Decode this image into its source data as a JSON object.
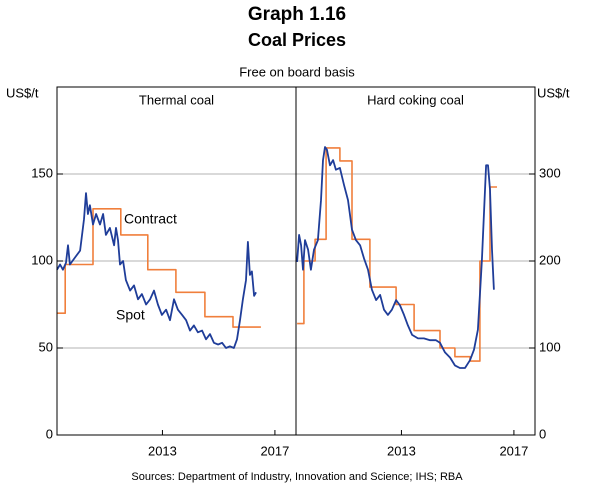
{
  "title": "Graph 1.16",
  "subtitle": "Coal Prices",
  "note": "Free on board basis",
  "source": "Sources:  Department of Industry, Innovation and Science; IHS; RBA",
  "chart_data": [
    {
      "type": "line",
      "title": "Thermal coal",
      "ylabel": "US$/t",
      "yaxis_side": "left",
      "xlim": [
        2009.75,
        2018.25
      ],
      "xticks": [
        {
          "value": 2013.5,
          "label": "2013"
        },
        {
          "value": 2017.5,
          "label": "2017"
        }
      ],
      "ylim": [
        0,
        200
      ],
      "yticks": [
        0,
        50,
        100,
        150
      ],
      "grid": true,
      "series": [
        {
          "name": "Contract",
          "color": "#f07f3c",
          "step": "post",
          "x": [
            2009.75,
            2010.04,
            2011.03,
            2012.02,
            2012.98,
            2013.98,
            2015.01,
            2016.01,
            2017.0
          ],
          "values": [
            70,
            98,
            130,
            115,
            95,
            82,
            68,
            62,
            62
          ]
        },
        {
          "name": "Spot",
          "color": "#1f3d99",
          "x": [
            2009.75,
            2009.86,
            2009.96,
            2010.07,
            2010.14,
            2010.21,
            2010.39,
            2010.57,
            2010.71,
            2010.78,
            2010.85,
            2010.92,
            2011.03,
            2011.14,
            2011.28,
            2011.39,
            2011.49,
            2011.63,
            2011.78,
            2011.85,
            2011.92,
            2011.99,
            2012.1,
            2012.2,
            2012.35,
            2012.49,
            2012.63,
            2012.77,
            2012.92,
            2013.06,
            2013.2,
            2013.34,
            2013.48,
            2013.63,
            2013.77,
            2013.91,
            2014.05,
            2014.2,
            2014.34,
            2014.48,
            2014.62,
            2014.76,
            2014.91,
            2015.05,
            2015.19,
            2015.33,
            2015.48,
            2015.62,
            2015.76,
            2015.9,
            2016.04,
            2016.15,
            2016.26,
            2016.36,
            2016.47,
            2016.54,
            2016.61,
            2016.68,
            2016.76,
            2016.83
          ],
          "values": [
            95,
            98,
            95,
            99,
            109,
            98,
            102,
            106,
            124,
            139,
            127,
            132,
            121,
            127,
            121,
            127,
            115,
            119,
            109,
            119,
            112,
            98,
            100,
            89,
            83,
            86,
            78,
            81,
            75,
            78,
            83,
            75,
            69,
            72,
            66,
            78,
            72,
            69,
            66,
            60,
            63,
            59,
            60,
            55,
            58,
            53,
            52,
            53,
            50,
            51,
            50,
            55,
            66,
            78,
            89,
            111,
            92,
            94,
            80,
            82
          ]
        }
      ]
    },
    {
      "type": "line",
      "title": "Hard coking coal",
      "ylabel": "US$/t",
      "yaxis_side": "right",
      "xlim": [
        2009.75,
        2018.25
      ],
      "xticks": [
        {
          "value": 2013.5,
          "label": "2013"
        },
        {
          "value": 2017.5,
          "label": "2017"
        }
      ],
      "ylim": [
        0,
        400
      ],
      "yticks": [
        0,
        100,
        200,
        300
      ],
      "grid": true,
      "series": [
        {
          "color": "#f07f3c",
          "step": "post",
          "x": [
            2009.79,
            2010.03,
            2010.43,
            2010.82,
            2011.31,
            2011.74,
            2012.38,
            2013.31,
            2013.95,
            2014.87,
            2015.4,
            2015.94,
            2016.29,
            2016.65,
            2016.9
          ],
          "values": [
            128,
            200,
            225,
            330,
            315,
            225,
            170,
            150,
            120,
            100,
            90,
            85,
            200,
            285,
            285
          ]
        },
        {
          "color": "#1f3d99",
          "x": [
            2009.79,
            2009.86,
            2009.93,
            2010.0,
            2010.07,
            2010.18,
            2010.28,
            2010.39,
            2010.53,
            2010.64,
            2010.71,
            2010.78,
            2010.85,
            2010.96,
            2011.07,
            2011.17,
            2011.31,
            2011.46,
            2011.6,
            2011.74,
            2011.88,
            2012.03,
            2012.17,
            2012.31,
            2012.45,
            2012.6,
            2012.74,
            2012.88,
            2013.02,
            2013.16,
            2013.31,
            2013.45,
            2013.59,
            2013.73,
            2013.88,
            2014.09,
            2014.3,
            2014.52,
            2014.73,
            2014.87,
            2015.05,
            2015.23,
            2015.4,
            2015.58,
            2015.76,
            2015.94,
            2016.08,
            2016.22,
            2016.36,
            2016.51,
            2016.58,
            2016.65,
            2016.72,
            2016.79
          ],
          "values": [
            199,
            230,
            218,
            190,
            224,
            213,
            190,
            213,
            224,
            270,
            316,
            331,
            328,
            310,
            316,
            305,
            307,
            287,
            270,
            236,
            224,
            218,
            203,
            190,
            167,
            155,
            161,
            144,
            138,
            144,
            155,
            149,
            138,
            126,
            115,
            111,
            111,
            109,
            109,
            106,
            95,
            89,
            80,
            77,
            77,
            86,
            98,
            121,
            201,
            310,
            310,
            282,
            213,
            167
          ]
        }
      ]
    }
  ]
}
